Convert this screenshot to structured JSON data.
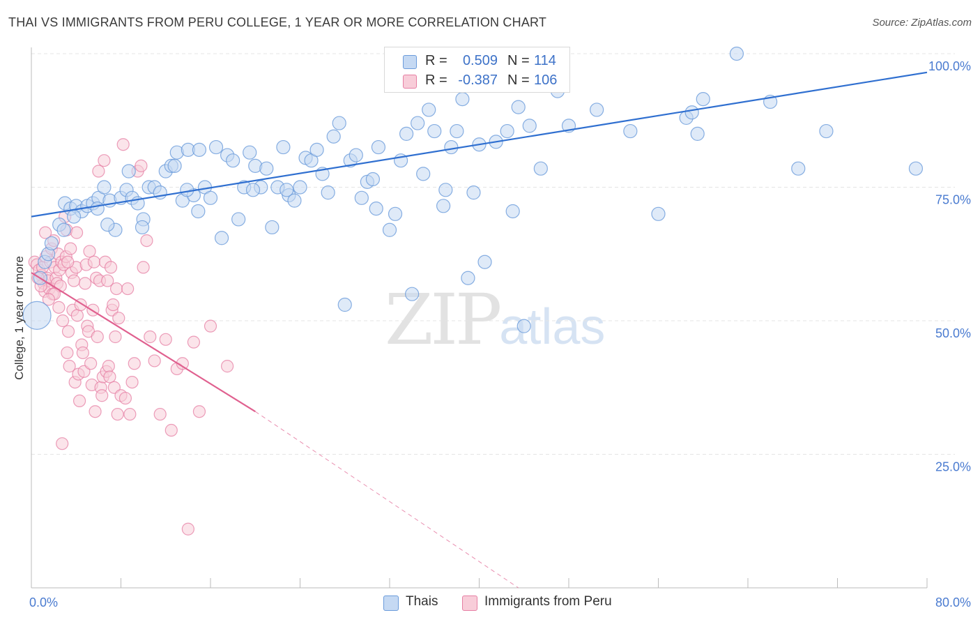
{
  "title": "THAI VS IMMIGRANTS FROM PERU COLLEGE, 1 YEAR OR MORE CORRELATION CHART",
  "source": "Source: ZipAtlas.com",
  "watermark": {
    "zip": "ZIP",
    "atlas": "atlas"
  },
  "colors": {
    "blue": "#6a9bdb",
    "blue_fill": "#c5d9f3",
    "blue_line": "#2f6fd0",
    "pink": "#e67ea3",
    "pink_fill": "#f8cdd9",
    "pink_line": "#e0608f",
    "tick": "#4a7bd0"
  },
  "legend": {
    "rows": [
      {
        "r_label": "R =",
        "r_value": "0.509",
        "n_label": "N =",
        "n_value": "114",
        "color": "blue"
      },
      {
        "r_label": "R =",
        "r_value": "-0.387",
        "n_label": "N =",
        "n_value": "106",
        "color": "pink"
      }
    ]
  },
  "bottom_legend": [
    {
      "label": "Thais",
      "color": "blue"
    },
    {
      "label": "Immigrants from Peru",
      "color": "pink"
    }
  ],
  "chart_data": {
    "type": "scatter",
    "title": "THAI VS IMMIGRANTS FROM PERU COLLEGE, 1 YEAR OR MORE CORRELATION CHART",
    "xlabel": "",
    "ylabel": "College, 1 year or more",
    "xlim": [
      0,
      80
    ],
    "ylim": [
      0,
      100
    ],
    "x_tick_labels": [
      "0.0%",
      "80.0%"
    ],
    "y_tick_labels": [
      {
        "value": 100,
        "label": "100.0%"
      },
      {
        "value": 75,
        "label": "75.0%"
      },
      {
        "value": 50,
        "label": "50.0%"
      },
      {
        "value": 25,
        "label": "25.0%"
      }
    ],
    "grid": true,
    "legend_position": "top-center",
    "series": [
      {
        "name": "Thais",
        "color": "blue",
        "trend": {
          "x": [
            0,
            80
          ],
          "y": [
            69.5,
            96.5
          ],
          "dashed_after": null
        },
        "points": [
          [
            0.5,
            51
          ],
          [
            0.8,
            58
          ],
          [
            1.2,
            61
          ],
          [
            1.5,
            62.5
          ],
          [
            1.8,
            64.5
          ],
          [
            2.5,
            68
          ],
          [
            3,
            72
          ],
          [
            3.5,
            71
          ],
          [
            4,
            71.5
          ],
          [
            4.5,
            70.5
          ],
          [
            5,
            71.5
          ],
          [
            5.5,
            72
          ],
          [
            6,
            73
          ],
          [
            6.5,
            75
          ],
          [
            7,
            72.5
          ],
          [
            7.5,
            67
          ],
          [
            8,
            73
          ],
          [
            8.5,
            74.5
          ],
          [
            9,
            73
          ],
          [
            9.5,
            72
          ],
          [
            10,
            69
          ],
          [
            10.5,
            75
          ],
          [
            11,
            75
          ],
          [
            11.5,
            74
          ],
          [
            12,
            78
          ],
          [
            12.5,
            79
          ],
          [
            13,
            81.5
          ],
          [
            13.5,
            72.5
          ],
          [
            14,
            82
          ],
          [
            14.5,
            73.5
          ],
          [
            15,
            82
          ],
          [
            15.5,
            75
          ],
          [
            16,
            73
          ],
          [
            16.5,
            82.5
          ],
          [
            17,
            65.5
          ],
          [
            17.5,
            81
          ],
          [
            18,
            80
          ],
          [
            18.5,
            69
          ],
          [
            19,
            75
          ],
          [
            19.5,
            81.5
          ],
          [
            20,
            79
          ],
          [
            20.5,
            75
          ],
          [
            21,
            78.5
          ],
          [
            21.5,
            67.5
          ],
          [
            22,
            75
          ],
          [
            22.5,
            82.5
          ],
          [
            23,
            73.5
          ],
          [
            23.5,
            72.5
          ],
          [
            24,
            75
          ],
          [
            24.5,
            80.5
          ],
          [
            25,
            80
          ],
          [
            25.5,
            82
          ],
          [
            26,
            77.5
          ],
          [
            26.5,
            74
          ],
          [
            27,
            84.5
          ],
          [
            27.5,
            87
          ],
          [
            28,
            53
          ],
          [
            28.5,
            80
          ],
          [
            29,
            81
          ],
          [
            29.5,
            73
          ],
          [
            30,
            76
          ],
          [
            30.5,
            76.5
          ],
          [
            31,
            82.5
          ],
          [
            32,
            67
          ],
          [
            32.5,
            70
          ],
          [
            33,
            80
          ],
          [
            33.5,
            85
          ],
          [
            34,
            55
          ],
          [
            34.5,
            87
          ],
          [
            35,
            77.5
          ],
          [
            35.5,
            89.5
          ],
          [
            36,
            85.5
          ],
          [
            37,
            74.5
          ],
          [
            37.5,
            82.5
          ],
          [
            38,
            85.5
          ],
          [
            38.5,
            91.5
          ],
          [
            39,
            58
          ],
          [
            39.5,
            74
          ],
          [
            40,
            83
          ],
          [
            40.5,
            61
          ],
          [
            41.5,
            83.5
          ],
          [
            42.5,
            85.5
          ],
          [
            43,
            70.5
          ],
          [
            43.5,
            90
          ],
          [
            44,
            49
          ],
          [
            44.5,
            86.5
          ],
          [
            45.5,
            78.5
          ],
          [
            47,
            93
          ],
          [
            48,
            86.5
          ],
          [
            50.5,
            89.5
          ],
          [
            53.5,
            85.5
          ],
          [
            56,
            70
          ],
          [
            58.5,
            88
          ],
          [
            59,
            89
          ],
          [
            59.5,
            85
          ],
          [
            60,
            91.5
          ],
          [
            63,
            100
          ],
          [
            66,
            91
          ],
          [
            68.5,
            78.5
          ],
          [
            71,
            85.5
          ],
          [
            79,
            78.5
          ],
          [
            6.8,
            68
          ],
          [
            3.8,
            69.5
          ],
          [
            8.7,
            78
          ],
          [
            12.8,
            79
          ],
          [
            9.9,
            67.5
          ],
          [
            14.9,
            70.5
          ],
          [
            19.8,
            74.5
          ],
          [
            22.8,
            74.5
          ],
          [
            30.8,
            71
          ],
          [
            36.8,
            71.5
          ],
          [
            13.9,
            74.5
          ],
          [
            2.9,
            67
          ],
          [
            5.9,
            71
          ]
        ]
      },
      {
        "name": "Immigrants from Peru",
        "color": "pink",
        "trend": {
          "x": [
            0,
            20
          ],
          "y": [
            59,
            33
          ],
          "dashed_to": [
            43.5,
            0
          ]
        },
        "points": [
          [
            0.3,
            61
          ],
          [
            0.5,
            60.5
          ],
          [
            0.7,
            59.5
          ],
          [
            0.9,
            58.5
          ],
          [
            1,
            60
          ],
          [
            1.1,
            57
          ],
          [
            1.2,
            55.5
          ],
          [
            1.3,
            62
          ],
          [
            1.4,
            58
          ],
          [
            1.5,
            57.5
          ],
          [
            1.6,
            56
          ],
          [
            1.7,
            61
          ],
          [
            1.8,
            63.5
          ],
          [
            1.9,
            55
          ],
          [
            2,
            65
          ],
          [
            2.1,
            60
          ],
          [
            2.2,
            58
          ],
          [
            2.3,
            57
          ],
          [
            2.4,
            62.5
          ],
          [
            2.5,
            59.5
          ],
          [
            2.6,
            56.5
          ],
          [
            2.7,
            61
          ],
          [
            2.8,
            50
          ],
          [
            2.9,
            60.5
          ],
          [
            3,
            69.5
          ],
          [
            3.1,
            62
          ],
          [
            3.2,
            44
          ],
          [
            3.3,
            48
          ],
          [
            3.4,
            41.5
          ],
          [
            3.5,
            63.5
          ],
          [
            3.6,
            59
          ],
          [
            3.7,
            52
          ],
          [
            3.8,
            57.5
          ],
          [
            3.9,
            38.5
          ],
          [
            4,
            60
          ],
          [
            4.1,
            51
          ],
          [
            4.2,
            40
          ],
          [
            4.3,
            35
          ],
          [
            4.4,
            53
          ],
          [
            4.5,
            45.5
          ],
          [
            4.6,
            44
          ],
          [
            4.7,
            40.5
          ],
          [
            4.8,
            57
          ],
          [
            4.9,
            60.5
          ],
          [
            5,
            49
          ],
          [
            5.1,
            48
          ],
          [
            5.2,
            63
          ],
          [
            5.3,
            42
          ],
          [
            5.4,
            38
          ],
          [
            5.5,
            52
          ],
          [
            5.6,
            61
          ],
          [
            5.7,
            33
          ],
          [
            5.8,
            58
          ],
          [
            5.9,
            47
          ],
          [
            6,
            78
          ],
          [
            6.1,
            57.5
          ],
          [
            6.2,
            37.5
          ],
          [
            6.3,
            36
          ],
          [
            6.4,
            39.5
          ],
          [
            6.5,
            80
          ],
          [
            6.6,
            61
          ],
          [
            6.7,
            40.5
          ],
          [
            6.8,
            57.5
          ],
          [
            6.9,
            41.5
          ],
          [
            7,
            39.5
          ],
          [
            7.1,
            60
          ],
          [
            7.2,
            52
          ],
          [
            7.3,
            53
          ],
          [
            7.4,
            37.5
          ],
          [
            7.5,
            47
          ],
          [
            7.6,
            56
          ],
          [
            7.7,
            32.5
          ],
          [
            7.8,
            50.5
          ],
          [
            8,
            36
          ],
          [
            8.2,
            83
          ],
          [
            8.4,
            35.5
          ],
          [
            8.6,
            56
          ],
          [
            8.8,
            32.5
          ],
          [
            9,
            38.5
          ],
          [
            9.2,
            42
          ],
          [
            9.5,
            78
          ],
          [
            9.8,
            79
          ],
          [
            10,
            60
          ],
          [
            10.3,
            65
          ],
          [
            10.6,
            47
          ],
          [
            11,
            42.5
          ],
          [
            11.5,
            32.5
          ],
          [
            12,
            46.5
          ],
          [
            12.5,
            29.5
          ],
          [
            13,
            41
          ],
          [
            13.5,
            42
          ],
          [
            14,
            11
          ],
          [
            14.5,
            46
          ],
          [
            15,
            33
          ],
          [
            16,
            49
          ],
          [
            17.5,
            41.5
          ],
          [
            1.25,
            66.5
          ],
          [
            2.05,
            55
          ],
          [
            3.15,
            67
          ],
          [
            4.05,
            66.5
          ],
          [
            0.85,
            56.5
          ],
          [
            1.55,
            54
          ],
          [
            2.45,
            52.5
          ],
          [
            3.25,
            61
          ],
          [
            0.6,
            58
          ],
          [
            2.75,
            27
          ]
        ]
      }
    ]
  }
}
